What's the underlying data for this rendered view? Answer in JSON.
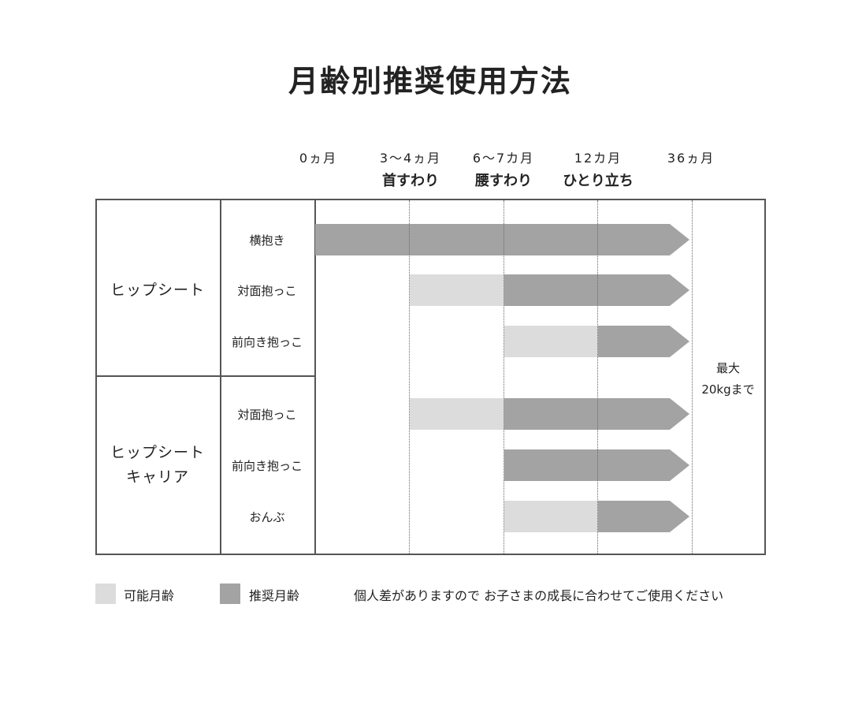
{
  "title": "月齢別推奨使用方法",
  "months": [
    "0ヵ月",
    "3〜4ヵ月",
    "6〜7カ月",
    "12カ月",
    "36ヵ月"
  ],
  "stages": [
    {
      "label": "首すわり",
      "at": 1
    },
    {
      "label": "腰すわり",
      "at": 2
    },
    {
      "label": "ひとり立ち",
      "at": 3
    }
  ],
  "groups": [
    {
      "name": "ヒップシート",
      "rows": [
        {
          "label": "横抱き",
          "possible_from": null,
          "recommended_from": 0
        },
        {
          "label": "対面抱っこ",
          "possible_from": 1,
          "recommended_from": 2
        },
        {
          "label": "前向き抱っこ",
          "possible_from": 2,
          "recommended_from": 3
        }
      ]
    },
    {
      "name": "ヒップシート\nキャリア",
      "name_lines": [
        "ヒップシート",
        "キャリア"
      ],
      "rows": [
        {
          "label": "対面抱っこ",
          "possible_from": 1,
          "recommended_from": 2
        },
        {
          "label": "前向き抱っこ",
          "possible_from": null,
          "recommended_from": 2
        },
        {
          "label": "おんぶ",
          "possible_from": 2,
          "recommended_from": 3
        }
      ]
    }
  ],
  "end_at": 4,
  "max_note": [
    "最大",
    "20kgまで"
  ],
  "legend": [
    {
      "label": "可能月齢",
      "color": "#dcdcdc"
    },
    {
      "label": "推奨月齢",
      "color": "#a3a3a3"
    }
  ],
  "note": "個人差がありますので お子さまの成長に合わせてご使用ください",
  "colors": {
    "possible": "#dcdcdc",
    "recommended": "#a3a3a3",
    "border": "#555555"
  }
}
